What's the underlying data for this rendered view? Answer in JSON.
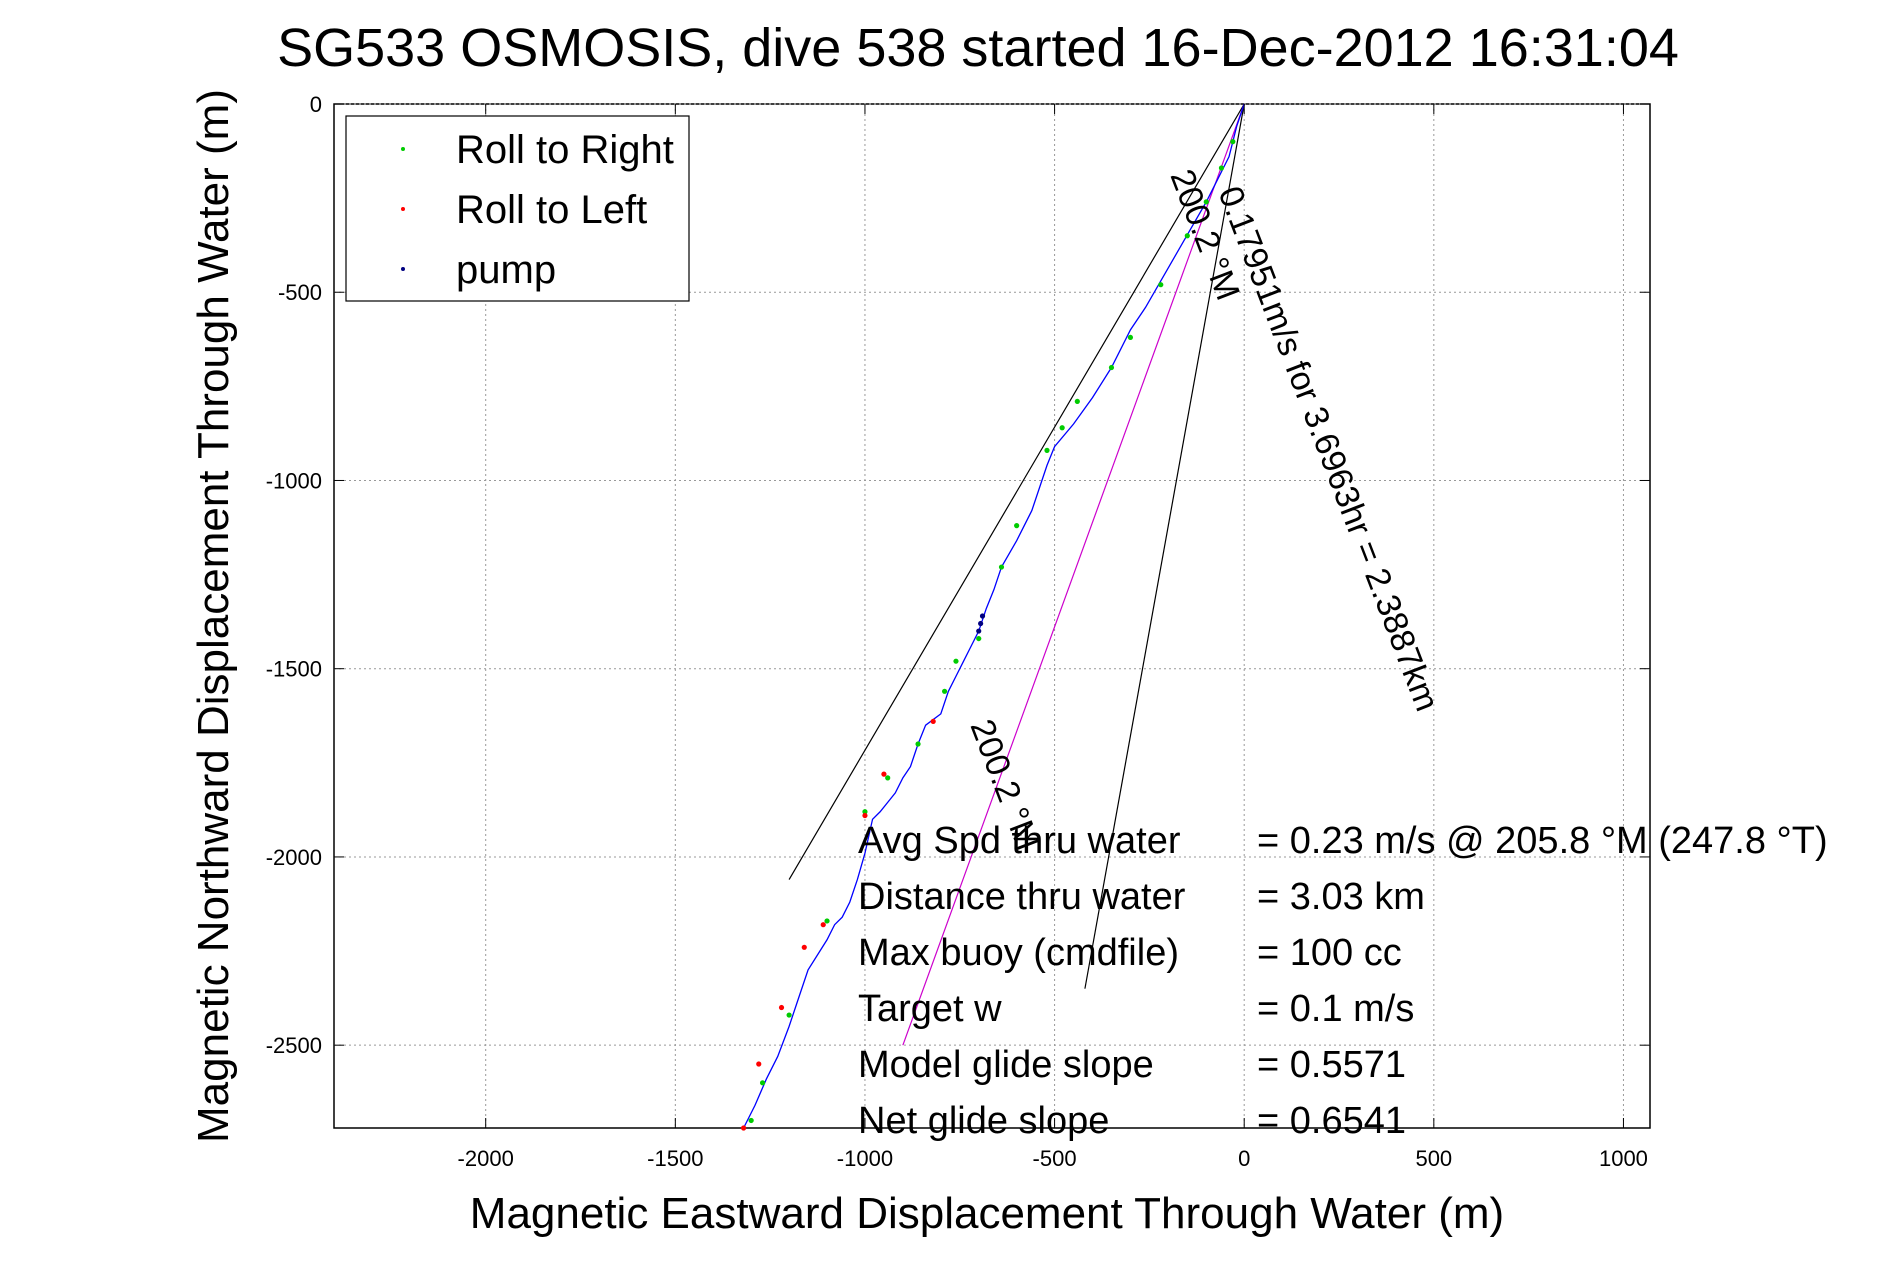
{
  "chart_data": {
    "type": "line",
    "title": "SG533 OSMOSIS, dive 538 started 16-Dec-2012 16:31:04",
    "xlabel": "Magnetic Eastward Displacement Through Water (m)",
    "ylabel": "Magnetic Northward Displacement Through Water (m)",
    "xlim": [
      -2400,
      1070
    ],
    "ylim": [
      -2720,
      0
    ],
    "x_ticks": [
      -2000,
      -1500,
      -1000,
      -500,
      0,
      500,
      1000
    ],
    "y_ticks": [
      0,
      -500,
      -1000,
      -1500,
      -2000,
      -2500
    ],
    "x_tick_labels": [
      "-2000",
      "-1500",
      "-1000",
      "-500",
      "0",
      "500",
      "1000"
    ],
    "y_tick_labels": [
      "0",
      "-500",
      "-1000",
      "-1500",
      "-2000",
      "-2500"
    ],
    "grid": true,
    "legend": {
      "placement": "top-left",
      "entries": [
        {
          "label": "Roll to Right",
          "color": "#00cc00"
        },
        {
          "label": "Roll to Left",
          "color": "#ff0000"
        },
        {
          "label": "pump",
          "color": "#000080"
        }
      ]
    },
    "series": [
      {
        "color": "#0000ff",
        "x": [
          0,
          -20,
          -40,
          -70,
          -100,
          -140,
          -180,
          -220,
          -260,
          -300,
          -350,
          -400,
          -450,
          -500,
          -520,
          -560,
          -600,
          -640,
          -660,
          -680,
          -700,
          -720,
          -740,
          -760,
          -780,
          -800,
          -840,
          -860,
          -880,
          -900,
          -920,
          -960,
          -980,
          -1000,
          -1020,
          -1040,
          -1060,
          -1080,
          -1100,
          -1150,
          -1180,
          -1200,
          -1230,
          -1260,
          -1290,
          -1320
        ],
        "y": [
          0,
          -60,
          -140,
          -200,
          -260,
          -330,
          -400,
          -470,
          -540,
          -600,
          -700,
          -780,
          -850,
          -910,
          -960,
          -1080,
          -1160,
          -1230,
          -1290,
          -1340,
          -1400,
          -1440,
          -1480,
          -1520,
          -1560,
          -1620,
          -1650,
          -1700,
          -1760,
          -1790,
          -1830,
          -1880,
          -1900,
          -1990,
          -2060,
          -2120,
          -2160,
          -2180,
          -2220,
          -2300,
          -2390,
          -2450,
          -2530,
          -2590,
          -2660,
          -2720
        ]
      }
    ],
    "markers": {
      "roll_right": {
        "x": [
          -30,
          -60,
          -100,
          -150,
          -220,
          -300,
          -350,
          -440,
          -480,
          -520,
          -600,
          -640,
          -700,
          -760,
          -790,
          -860,
          -940,
          -1000,
          -1100,
          -1200,
          -1270,
          -1300
        ],
        "y": [
          -100,
          -170,
          -260,
          -350,
          -480,
          -620,
          -700,
          -790,
          -860,
          -920,
          -1120,
          -1230,
          -1420,
          -1480,
          -1560,
          -1700,
          -1790,
          -1880,
          -2170,
          -2420,
          -2600,
          -2700
        ]
      },
      "roll_left": {
        "x": [
          -820,
          -950,
          -1000,
          -1110,
          -1160,
          -1220,
          -1280,
          -1320
        ],
        "y": [
          -1640,
          -1780,
          -1890,
          -2180,
          -2240,
          -2400,
          -2550,
          -2720
        ]
      },
      "pump": {
        "x": [
          -690,
          -695,
          -700
        ],
        "y": [
          -1360,
          -1380,
          -1400
        ]
      }
    },
    "reference_lines": [
      {
        "color": "#000000",
        "x": [
          0,
          -1200
        ],
        "y": [
          0,
          -2060
        ]
      },
      {
        "color": "#000000",
        "x": [
          0,
          -420
        ],
        "y": [
          0,
          -2350
        ]
      },
      {
        "color": "#cc00cc",
        "x": [
          0,
          -900
        ],
        "y": [
          0,
          -2500
        ]
      }
    ],
    "annotations": {
      "heading_1": "200.2 °M",
      "heading_2": "200.2 °M",
      "speed_label": "0.17951m/s for 3.6963hr = 2.3887km",
      "stats": [
        {
          "label": "Avg Spd thru water",
          "value": "=  0.23 m/s @ 205.8 °M (247.8 °T)"
        },
        {
          "label": "Distance thru water",
          "value": "=  3.03 km"
        },
        {
          "label": "Max buoy (cmdfile)",
          "value": "= 100 cc"
        },
        {
          "label": "Target w",
          "value": "= 0.1 m/s"
        },
        {
          "label": "Model glide slope",
          "value": "= 0.5571"
        },
        {
          "label": "Net glide slope",
          "value": "= 0.6541"
        }
      ]
    }
  }
}
